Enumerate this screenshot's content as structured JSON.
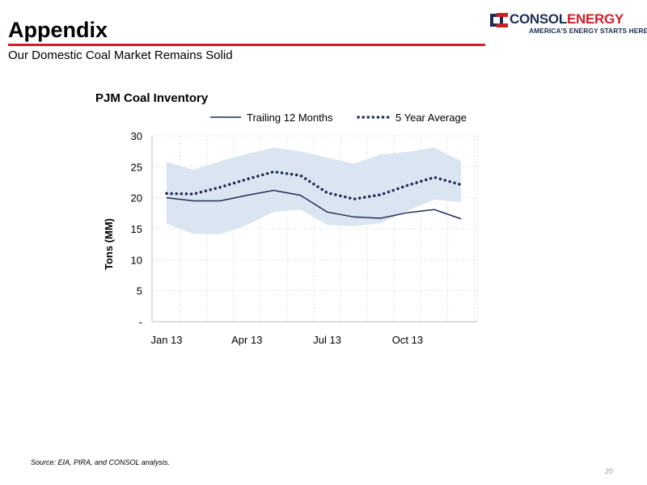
{
  "header": {
    "title": "Appendix",
    "subtitle": "Our Domestic Coal Market Remains Solid"
  },
  "logo": {
    "name_part1": "CONSOL",
    "name_part2": "ENERGY",
    "tagline": "AMERICA'S ENERGY STARTS HERE.",
    "colors": {
      "navy": "#1f2d54",
      "red": "#d21f26"
    }
  },
  "chart_data": {
    "type": "line",
    "title": "PJM Coal Inventory",
    "ylabel": "Tons (MM)",
    "xlabel": "",
    "ylim": [
      0,
      30
    ],
    "yticks": [
      {
        "value": 0,
        "label": "-"
      },
      {
        "value": 5,
        "label": "5"
      },
      {
        "value": 10,
        "label": "10"
      },
      {
        "value": 15,
        "label": "15"
      },
      {
        "value": 20,
        "label": "20"
      },
      {
        "value": 25,
        "label": "25"
      },
      {
        "value": 30,
        "label": "30"
      }
    ],
    "x": [
      "Jan 13",
      "Feb 13",
      "Mar 13",
      "Apr 13",
      "May 13",
      "Jun 13",
      "Jul 13",
      "Aug 13",
      "Sep 13",
      "Oct 13",
      "Nov 13",
      "Dec 13"
    ],
    "x_tick_labels": [
      "Jan 13",
      "Apr 13",
      "Jul 13",
      "Oct 13"
    ],
    "grid": true,
    "legend_position": "top",
    "series": [
      {
        "name": "Trailing 12 Months",
        "style": "solid",
        "color": "#1f2d54",
        "values": [
          20.0,
          19.5,
          19.5,
          20.4,
          21.2,
          20.4,
          17.7,
          16.9,
          16.7,
          17.6,
          18.1,
          16.6
        ]
      },
      {
        "name": "5 Year Average",
        "style": "dotted",
        "color": "#1f2d54",
        "values": [
          20.7,
          20.6,
          21.7,
          23.0,
          24.2,
          23.6,
          20.8,
          19.8,
          20.5,
          22.0,
          23.3,
          22.1
        ]
      }
    ],
    "range_band": {
      "color": "#dbe5f1",
      "upper": [
        25.8,
        24.5,
        25.9,
        27.1,
        28.1,
        27.5,
        26.5,
        25.5,
        27.0,
        27.4,
        28.1,
        25.9
      ],
      "lower": [
        15.8,
        14.2,
        14.1,
        15.6,
        17.7,
        18.1,
        15.6,
        15.4,
        15.9,
        17.9,
        19.7,
        19.3
      ]
    }
  },
  "footer": {
    "source": "Source:  EIA, PIRA, and CONSOL analysis.",
    "page_number": "20"
  }
}
